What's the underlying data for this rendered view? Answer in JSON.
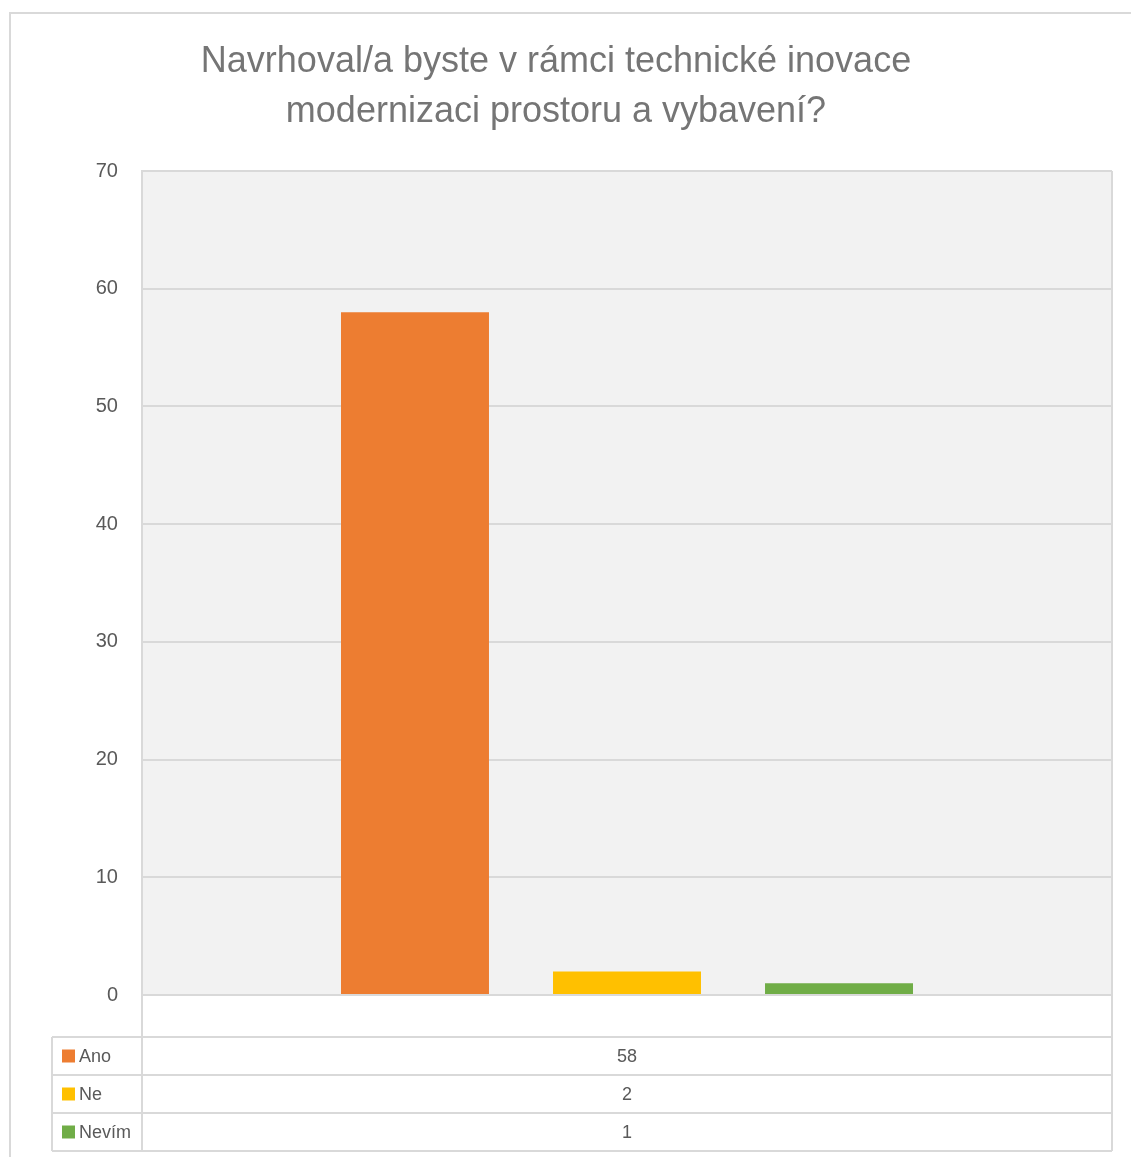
{
  "chart_data": {
    "type": "bar",
    "title": "Navrhoval/a byste v rámci technické inovace modernizaci prostoru a vybavení?",
    "categories": [
      null
    ],
    "series": [
      {
        "name": "Ano",
        "color": "#ed7d31",
        "values": [
          58
        ]
      },
      {
        "name": "Ne",
        "color": "#ffc000",
        "values": [
          2
        ]
      },
      {
        "name": "Nevím",
        "color": "#70ad47",
        "values": [
          1
        ]
      }
    ],
    "annotations": [
      "58",
      "2",
      "1"
    ],
    "ylim": [
      0,
      70
    ],
    "yticks": [
      0,
      10,
      20,
      30,
      40,
      50,
      60,
      70
    ],
    "grid": "y",
    "legend": "bottom"
  }
}
